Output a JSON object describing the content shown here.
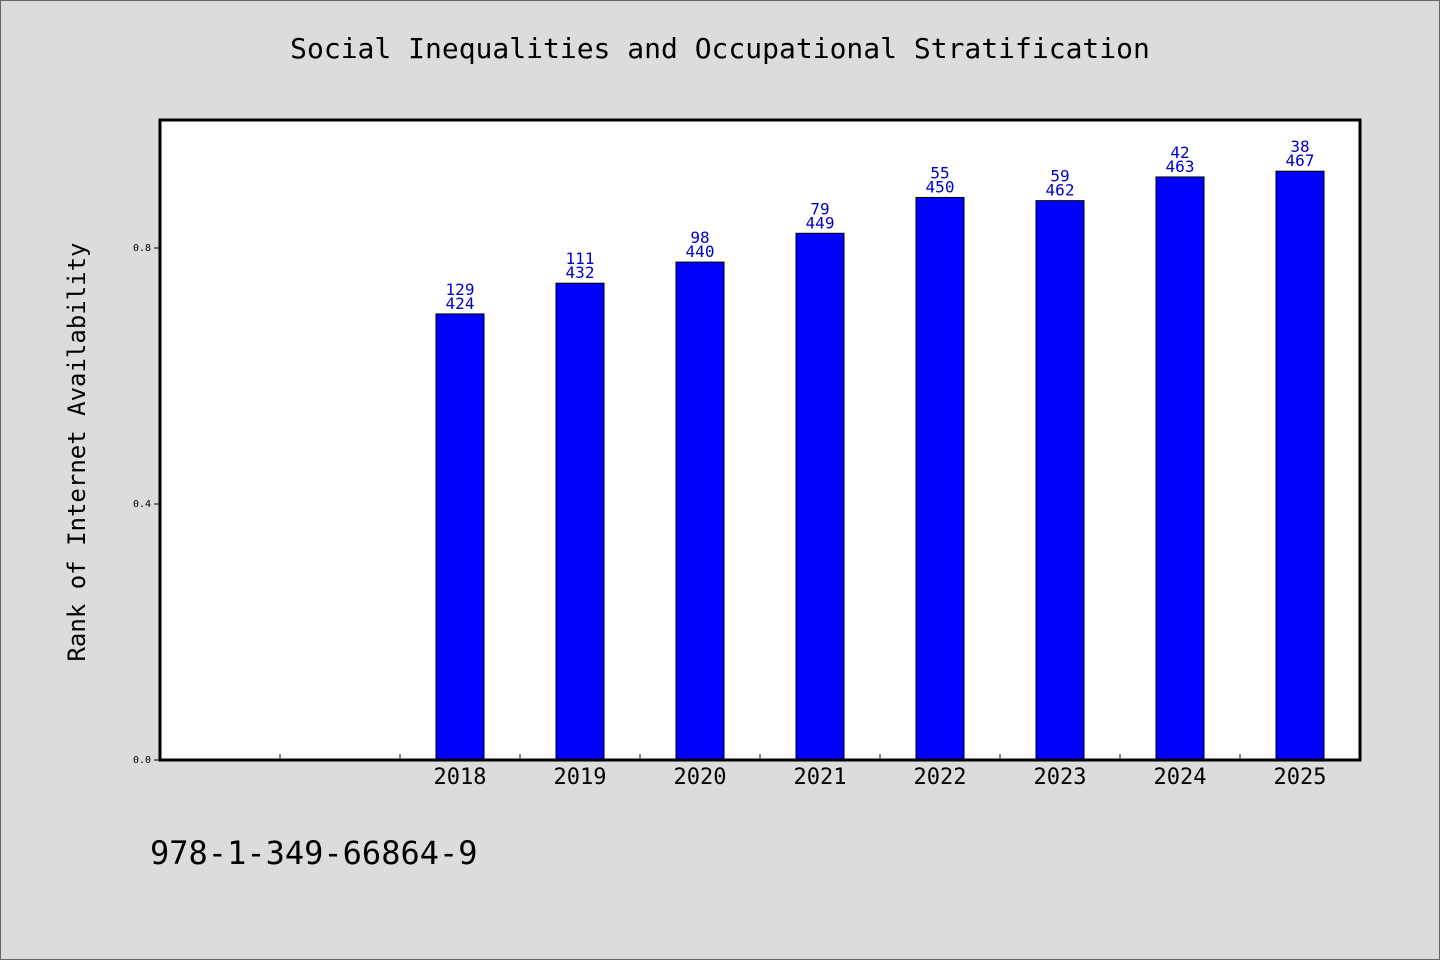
{
  "chart_data": {
    "type": "bar",
    "title": "Social Inequalities and Occupational Stratification",
    "xlabel": "",
    "ylabel": "Rank of Internet Availability",
    "categories": [
      "",
      "",
      "2018",
      "2019",
      "2020",
      "2021",
      "2022",
      "2023",
      "2024",
      "2025"
    ],
    "values": [
      null,
      null,
      0.697,
      0.745,
      0.778,
      0.823,
      0.879,
      0.874,
      0.911,
      0.92
    ],
    "bar_labels_top": [
      "",
      "",
      "129",
      "111",
      "98",
      "79",
      "55",
      "59",
      "42",
      "38"
    ],
    "bar_labels_bottom": [
      "",
      "",
      "424",
      "432",
      "440",
      "449",
      "450",
      "462",
      "463",
      "467"
    ],
    "yticks": [
      0.0,
      0.4,
      0.8
    ],
    "ytick_labels": [
      "0.0",
      "0.4",
      "0.8"
    ],
    "ylim": [
      0,
      1.0
    ],
    "grid": false,
    "legend": "none",
    "colors": {
      "bar": "#0000ff",
      "bar_label": "#0000cc",
      "plot_background": "#ffffff",
      "page_background": "#dcdcdc"
    }
  },
  "footer": {
    "isbn": "978-1-349-66864-9"
  }
}
